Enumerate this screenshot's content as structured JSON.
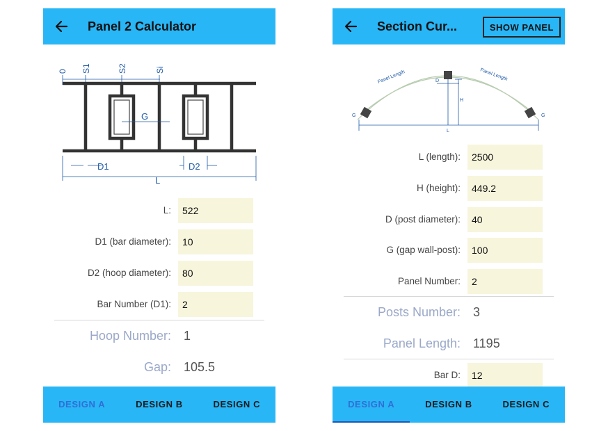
{
  "screen1": {
    "title": "Panel 2 Calculator",
    "figure": {
      "labels": [
        "0",
        "S1",
        "S2",
        "Si",
        "G",
        "D1",
        "D2",
        "L"
      ]
    },
    "fields": [
      {
        "label": "L:",
        "value": "522"
      },
      {
        "label": "D1 (bar diameter):",
        "value": "10"
      },
      {
        "label": "D2 (hoop diameter):",
        "value": "80"
      },
      {
        "label": "Bar Number (D1):",
        "value": "2"
      }
    ],
    "results": [
      {
        "label": "Hoop Number:",
        "value": "1"
      },
      {
        "label": "Gap:",
        "value": "105.5"
      }
    ],
    "tabs": [
      "DESIGN A",
      "DESIGN B",
      "DESIGN C"
    ],
    "active_tab": "DESIGN A"
  },
  "screen2": {
    "title": "Section Cur...",
    "show_panel_label": "SHOW PANEL",
    "figure": {
      "labels": [
        "Panel Length",
        "Panel Length",
        "D",
        "H",
        "G",
        "G",
        "L"
      ]
    },
    "fields": [
      {
        "label": "L (length):",
        "value": "2500"
      },
      {
        "label": "H (height):",
        "value": "449.2"
      },
      {
        "label": "D (post diameter):",
        "value": "40"
      },
      {
        "label": "G (gap wall-post):",
        "value": "100"
      },
      {
        "label": "Panel Number:",
        "value": "2"
      }
    ],
    "results": [
      {
        "label": "Posts Number:",
        "value": "3"
      },
      {
        "label": "Panel Length:",
        "value": "1195"
      }
    ],
    "extra_field": {
      "label": "Bar D:",
      "value": "12"
    },
    "tabs": [
      "DESIGN A",
      "DESIGN B",
      "DESIGN C"
    ],
    "active_tab": "DESIGN A"
  },
  "colors": {
    "appbar": "#29b6f6",
    "input_bg": "#f7f5dc",
    "active_tab": "#2f6fd6",
    "result_label": "#9aa8c8"
  },
  "icons": {
    "back": "arrow-left-icon"
  }
}
